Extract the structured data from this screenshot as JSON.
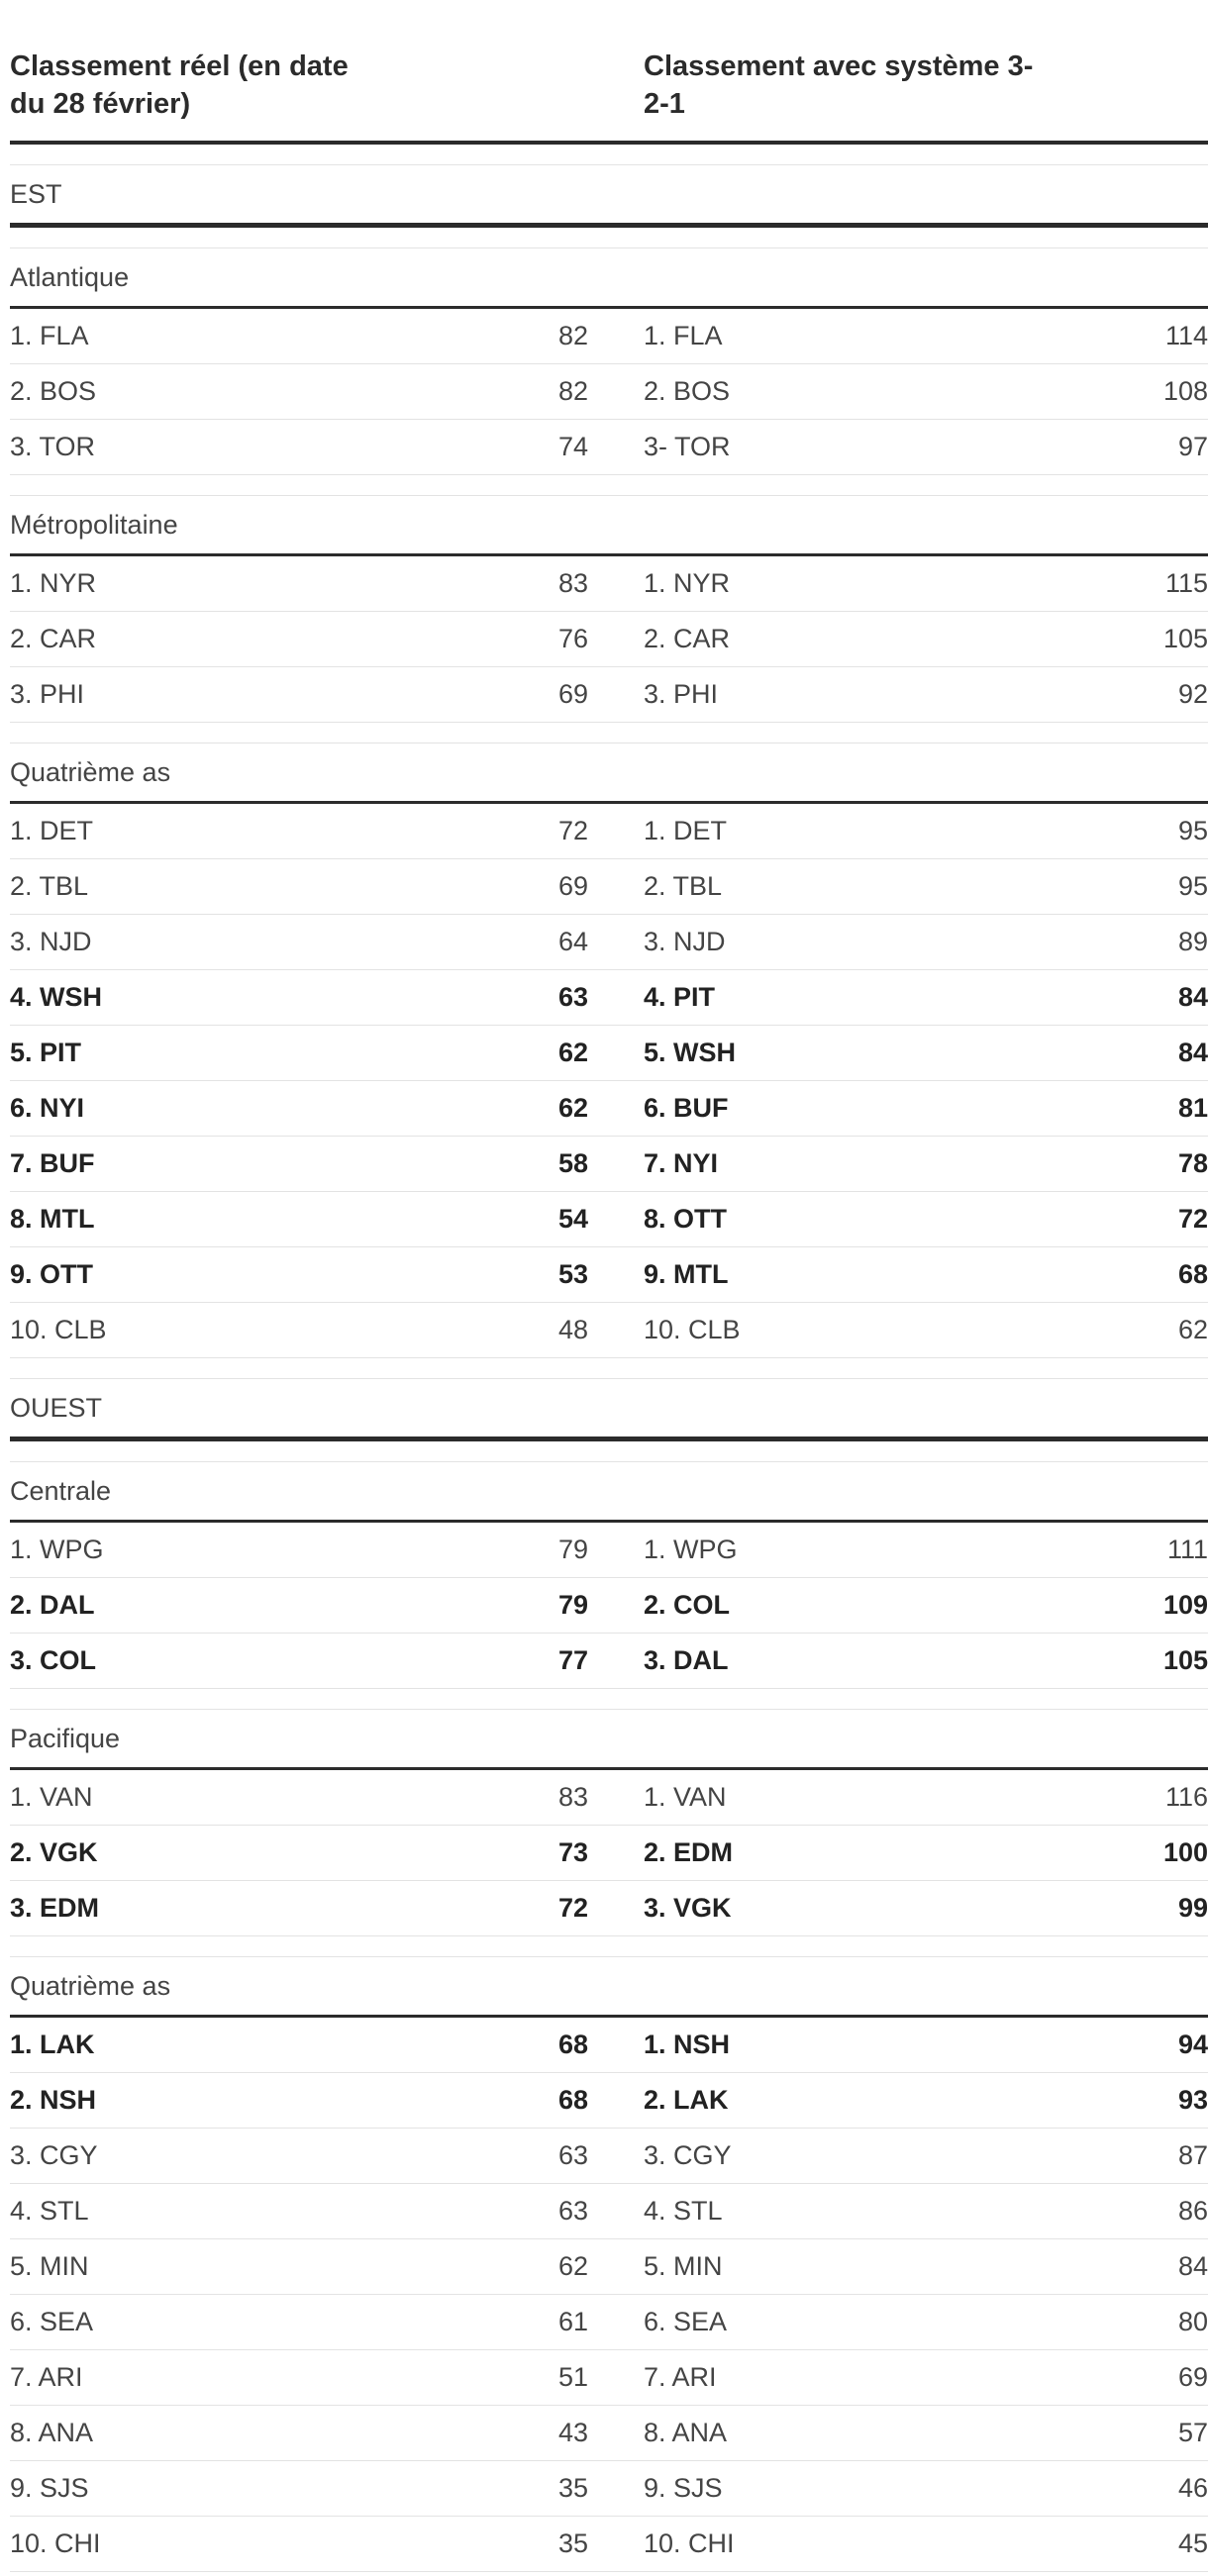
{
  "headers": {
    "actual": "Classement réel (en date du 28 février)",
    "system": "Classement avec système 3-2-1"
  },
  "conferences": [
    {
      "name": "EST",
      "divisions": [
        {
          "name": "Atlantique",
          "rows": [
            {
              "a_team": "1. FLA",
              "a_pts": "82",
              "b_team": "1. FLA",
              "b_pts": "114",
              "bold": false
            },
            {
              "a_team": "2. BOS",
              "a_pts": "82",
              "b_team": "2. BOS",
              "b_pts": "108",
              "bold": false
            },
            {
              "a_team": "3. TOR",
              "a_pts": "74",
              "b_team": "3- TOR",
              "b_pts": "97",
              "bold": false
            }
          ]
        },
        {
          "name": "Métropolitaine",
          "rows": [
            {
              "a_team": "1. NYR",
              "a_pts": "83",
              "b_team": "1. NYR",
              "b_pts": "115",
              "bold": false
            },
            {
              "a_team": "2. CAR",
              "a_pts": "76",
              "b_team": "2. CAR",
              "b_pts": "105",
              "bold": false
            },
            {
              "a_team": "3. PHI",
              "a_pts": "69",
              "b_team": "3. PHI",
              "b_pts": "92",
              "bold": false
            }
          ]
        },
        {
          "name": "Quatrième as",
          "rows": [
            {
              "a_team": "1. DET",
              "a_pts": "72",
              "b_team": "1. DET",
              "b_pts": "95",
              "bold": false
            },
            {
              "a_team": "2. TBL",
              "a_pts": "69",
              "b_team": "2. TBL",
              "b_pts": "95",
              "bold": false
            },
            {
              "a_team": "3. NJD",
              "a_pts": "64",
              "b_team": "3. NJD",
              "b_pts": "89",
              "bold": false
            },
            {
              "a_team": "4. WSH",
              "a_pts": "63",
              "b_team": "4. PIT",
              "b_pts": "84",
              "bold": true
            },
            {
              "a_team": "5. PIT",
              "a_pts": "62",
              "b_team": "5. WSH",
              "b_pts": "84",
              "bold": true
            },
            {
              "a_team": "6. NYI",
              "a_pts": "62",
              "b_team": "6. BUF",
              "b_pts": "81",
              "bold": true
            },
            {
              "a_team": "7. BUF",
              "a_pts": "58",
              "b_team": "7. NYI",
              "b_pts": "78",
              "bold": true
            },
            {
              "a_team": "8. MTL",
              "a_pts": "54",
              "b_team": "8. OTT",
              "b_pts": "72",
              "bold": true
            },
            {
              "a_team": "9. OTT",
              "a_pts": "53",
              "b_team": "9. MTL",
              "b_pts": "68",
              "bold": true
            },
            {
              "a_team": "10. CLB",
              "a_pts": "48",
              "b_team": "10. CLB",
              "b_pts": "62",
              "bold": false
            }
          ]
        }
      ]
    },
    {
      "name": "OUEST",
      "divisions": [
        {
          "name": "Centrale",
          "rows": [
            {
              "a_team": "1. WPG",
              "a_pts": "79",
              "b_team": "1. WPG",
              "b_pts": "111",
              "bold": false
            },
            {
              "a_team": "2. DAL",
              "a_pts": "79",
              "b_team": "2. COL",
              "b_pts": "109",
              "bold": true
            },
            {
              "a_team": "3. COL",
              "a_pts": "77",
              "b_team": "3. DAL",
              "b_pts": "105",
              "bold": true
            }
          ]
        },
        {
          "name": "Pacifique",
          "rows": [
            {
              "a_team": "1. VAN",
              "a_pts": "83",
              "b_team": "1. VAN",
              "b_pts": "116",
              "bold": false
            },
            {
              "a_team": "2. VGK",
              "a_pts": "73",
              "b_team": "2. EDM",
              "b_pts": "100",
              "bold": true
            },
            {
              "a_team": "3. EDM",
              "a_pts": "72",
              "b_team": "3. VGK",
              "b_pts": "99",
              "bold": true
            }
          ]
        },
        {
          "name": "Quatrième as",
          "rows": [
            {
              "a_team": "1. LAK",
              "a_pts": "68",
              "b_team": "1. NSH",
              "b_pts": "94",
              "bold": true
            },
            {
              "a_team": "2. NSH",
              "a_pts": "68",
              "b_team": "2. LAK",
              "b_pts": "93",
              "bold": true
            },
            {
              "a_team": "3. CGY",
              "a_pts": "63",
              "b_team": "3. CGY",
              "b_pts": "87",
              "bold": false
            },
            {
              "a_team": "4. STL",
              "a_pts": "63",
              "b_team": "4. STL",
              "b_pts": "86",
              "bold": false
            },
            {
              "a_team": "5. MIN",
              "a_pts": "62",
              "b_team": "5. MIN",
              "b_pts": "84",
              "bold": false
            },
            {
              "a_team": "6. SEA",
              "a_pts": "61",
              "b_team": "6. SEA",
              "b_pts": "80",
              "bold": false
            },
            {
              "a_team": "7. ARI",
              "a_pts": "51",
              "b_team": "7. ARI",
              "b_pts": "69",
              "bold": false
            },
            {
              "a_team": "8. ANA",
              "a_pts": "43",
              "b_team": "8. ANA",
              "b_pts": "57",
              "bold": false
            },
            {
              "a_team": "9. SJS",
              "a_pts": "35",
              "b_team": "9. SJS",
              "b_pts": "46",
              "bold": false
            },
            {
              "a_team": "10. CHI",
              "a_pts": "35",
              "b_team": "10. CHI",
              "b_pts": "45",
              "bold": false
            }
          ]
        }
      ]
    }
  ]
}
